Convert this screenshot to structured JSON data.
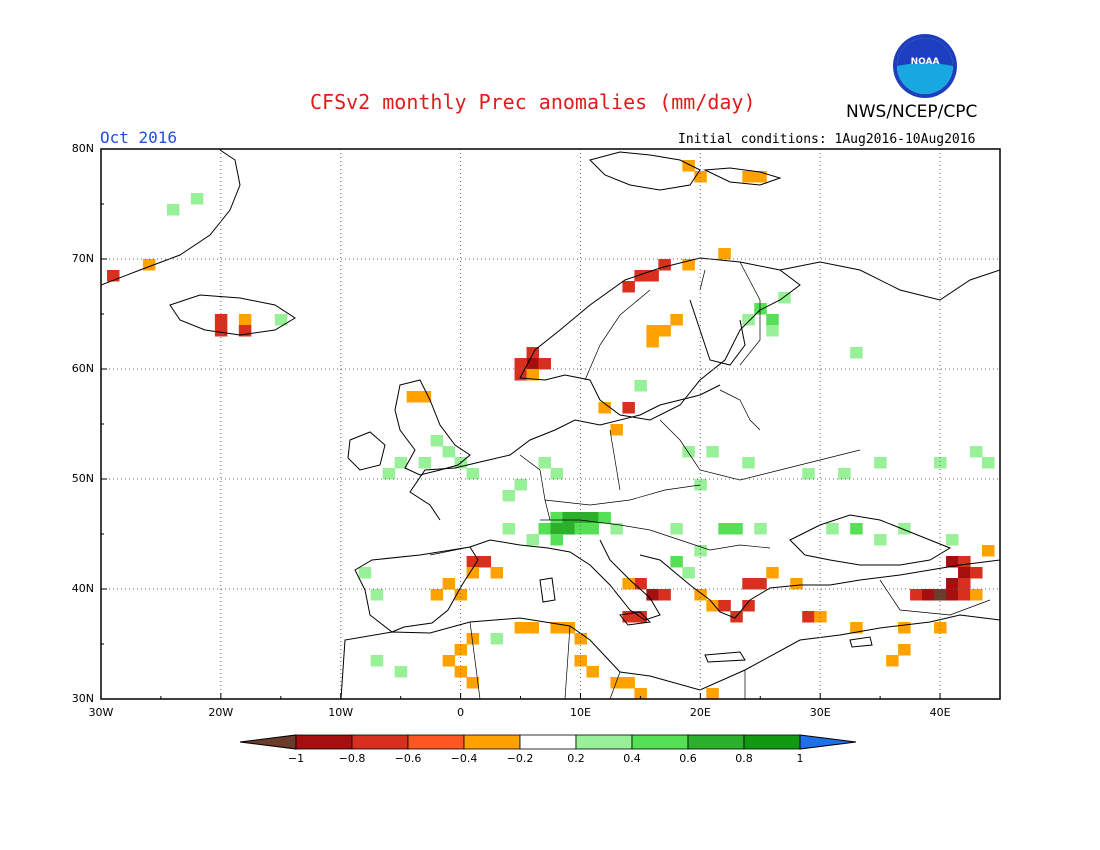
{
  "header": {
    "title": "CFSv2 monthly Prec anomalies (mm/day)",
    "month": "Oct 2016",
    "initial_conditions": "Initial conditions: 1Aug2016-10Aug2016",
    "org": "NWS/NCEP/CPC",
    "logo_text": "NOAA"
  },
  "axes": {
    "lat_labels": [
      "80N",
      "70N",
      "60N",
      "50N",
      "40N",
      "30N"
    ],
    "lon_labels": [
      "30W",
      "20W",
      "10W",
      "0",
      "10E",
      "20E",
      "30E",
      "40E"
    ]
  },
  "colorbar": {
    "labels": [
      "-1",
      "-0.8",
      "-0.6",
      "-0.4",
      "-0.2",
      "0.2",
      "0.4",
      "0.6",
      "0.8",
      "1"
    ],
    "colors": [
      "#6b3c29",
      "#a50f0f",
      "#d7301f",
      "#ff5722",
      "#ffa200",
      "#ffffff",
      "#98f098",
      "#55e055",
      "#2cb02c",
      "#119911",
      "#1e6fe8"
    ]
  },
  "map": {
    "lat_range": [
      30,
      80
    ],
    "lon_range": [
      -30,
      45
    ],
    "grid_step_deg": 10,
    "anomaly_cells": [
      {
        "lon": -29,
        "lat": 68.5,
        "v": -0.7
      },
      {
        "lon": -26,
        "lat": 69.5,
        "v": -0.3
      },
      {
        "lon": -22,
        "lat": 75.5,
        "v": 0.3
      },
      {
        "lon": -24,
        "lat": 74.5,
        "v": 0.3
      },
      {
        "lon": -20,
        "lat": 64.5,
        "v": -0.6
      },
      {
        "lon": -18,
        "lat": 64.5,
        "v": -0.3
      },
      {
        "lon": -20,
        "lat": 63.5,
        "v": -0.6
      },
      {
        "lon": -18,
        "lat": 63.5,
        "v": -0.6
      },
      {
        "lon": -15,
        "lat": 64.5,
        "v": 0.3
      },
      {
        "lon": 19,
        "lat": 78.5,
        "v": -0.3
      },
      {
        "lon": 20,
        "lat": 77.5,
        "v": -0.3
      },
      {
        "lon": 24,
        "lat": 77.5,
        "v": -0.3
      },
      {
        "lon": 25,
        "lat": 77.5,
        "v": -0.3
      },
      {
        "lon": 22,
        "lat": 70.5,
        "v": -0.3
      },
      {
        "lon": 19,
        "lat": 69.5,
        "v": -0.3
      },
      {
        "lon": 16,
        "lat": 68.5,
        "v": -0.7
      },
      {
        "lon": 15,
        "lat": 68.5,
        "v": -0.7
      },
      {
        "lon": 17,
        "lat": 69.5,
        "v": -0.6
      },
      {
        "lon": 14,
        "lat": 67.5,
        "v": -0.6
      },
      {
        "lon": 17,
        "lat": 63.5,
        "v": -0.3
      },
      {
        "lon": 16,
        "lat": 63.5,
        "v": -0.3
      },
      {
        "lon": 18,
        "lat": 64.5,
        "v": -0.3
      },
      {
        "lon": 16,
        "lat": 62.5,
        "v": -0.3
      },
      {
        "lon": 6,
        "lat": 61.5,
        "v": -0.7
      },
      {
        "lon": 6,
        "lat": 60.5,
        "v": -0.8
      },
      {
        "lon": 5,
        "lat": 60.5,
        "v": -0.6
      },
      {
        "lon": 7,
        "lat": 60.5,
        "v": -0.6
      },
      {
        "lon": 5,
        "lat": 59.5,
        "v": -0.7
      },
      {
        "lon": 6,
        "lat": 59.5,
        "v": -0.3
      },
      {
        "lon": 27,
        "lat": 66.5,
        "v": 0.3
      },
      {
        "lon": 25,
        "lat": 65.5,
        "v": 0.5
      },
      {
        "lon": 26,
        "lat": 64.5,
        "v": 0.5
      },
      {
        "lon": 24,
        "lat": 64.5,
        "v": 0.3
      },
      {
        "lon": 26,
        "lat": 63.5,
        "v": 0.3
      },
      {
        "lon": 33,
        "lat": 61.5,
        "v": 0.3
      },
      {
        "lon": -4,
        "lat": 57.5,
        "v": -0.3
      },
      {
        "lon": -3,
        "lat": 57.5,
        "v": -0.3
      },
      {
        "lon": 12,
        "lat": 56.5,
        "v": -0.3
      },
      {
        "lon": 14,
        "lat": 56.5,
        "v": -0.6
      },
      {
        "lon": 13,
        "lat": 54.5,
        "v": -0.3
      },
      {
        "lon": 15,
        "lat": 58.5,
        "v": 0.3
      },
      {
        "lon": -2,
        "lat": 53.5,
        "v": 0.3
      },
      {
        "lon": -1,
        "lat": 52.5,
        "v": 0.3
      },
      {
        "lon": 0,
        "lat": 51.5,
        "v": 0.3
      },
      {
        "lon": -3,
        "lat": 51.5,
        "v": 0.3
      },
      {
        "lon": -5,
        "lat": 51.5,
        "v": 0.3
      },
      {
        "lon": 1,
        "lat": 50.5,
        "v": 0.3
      },
      {
        "lon": -6,
        "lat": 50.5,
        "v": 0.3
      },
      {
        "lon": 4,
        "lat": 48.5,
        "v": 0.3
      },
      {
        "lon": 5,
        "lat": 49.5,
        "v": 0.3
      },
      {
        "lon": 7,
        "lat": 51.5,
        "v": 0.3
      },
      {
        "lon": 8,
        "lat": 50.5,
        "v": 0.3
      },
      {
        "lon": 19,
        "lat": 52.5,
        "v": 0.3
      },
      {
        "lon": 21,
        "lat": 52.5,
        "v": 0.3
      },
      {
        "lon": 20,
        "lat": 49.5,
        "v": 0.3
      },
      {
        "lon": 24,
        "lat": 51.5,
        "v": 0.3
      },
      {
        "lon": 29,
        "lat": 50.5,
        "v": 0.3
      },
      {
        "lon": 32,
        "lat": 50.5,
        "v": 0.3
      },
      {
        "lon": 35,
        "lat": 51.5,
        "v": 0.3
      },
      {
        "lon": 40,
        "lat": 51.5,
        "v": 0.3
      },
      {
        "lon": 43,
        "lat": 52.5,
        "v": 0.3
      },
      {
        "lon": 44,
        "lat": 51.5,
        "v": 0.3
      },
      {
        "lon": 8,
        "lat": 46.5,
        "v": 0.5
      },
      {
        "lon": 9,
        "lat": 46.5,
        "v": 0.7
      },
      {
        "lon": 10,
        "lat": 46.5,
        "v": 0.7
      },
      {
        "lon": 11,
        "lat": 46.5,
        "v": 0.7
      },
      {
        "lon": 12,
        "lat": 46.5,
        "v": 0.5
      },
      {
        "lon": 7,
        "lat": 45.5,
        "v": 0.5
      },
      {
        "lon": 8,
        "lat": 45.5,
        "v": 0.7
      },
      {
        "lon": 9,
        "lat": 45.5,
        "v": 0.7
      },
      {
        "lon": 10,
        "lat": 45.5,
        "v": 0.5
      },
      {
        "lon": 11,
        "lat": 45.5,
        "v": 0.5
      },
      {
        "lon": 6,
        "lat": 44.5,
        "v": 0.3
      },
      {
        "lon": 8,
        "lat": 44.5,
        "v": 0.5
      },
      {
        "lon": 13,
        "lat": 45.5,
        "v": 0.3
      },
      {
        "lon": 4,
        "lat": 45.5,
        "v": 0.3
      },
      {
        "lon": 18,
        "lat": 45.5,
        "v": 0.3
      },
      {
        "lon": 22,
        "lat": 45.5,
        "v": 0.5
      },
      {
        "lon": 23,
        "lat": 45.5,
        "v": 0.5
      },
      {
        "lon": 25,
        "lat": 45.5,
        "v": 0.3
      },
      {
        "lon": 18,
        "lat": 42.5,
        "v": 0.5
      },
      {
        "lon": 19,
        "lat": 41.5,
        "v": 0.3
      },
      {
        "lon": 20,
        "lat": 43.5,
        "v": 0.3
      },
      {
        "lon": 31,
        "lat": 45.5,
        "v": 0.3
      },
      {
        "lon": 33,
        "lat": 45.5,
        "v": 0.5
      },
      {
        "lon": 35,
        "lat": 44.5,
        "v": 0.3
      },
      {
        "lon": 37,
        "lat": 45.5,
        "v": 0.3
      },
      {
        "lon": 41,
        "lat": 44.5,
        "v": 0.3
      },
      {
        "lon": 44,
        "lat": 43.5,
        "v": 0.3
      },
      {
        "lon": 1,
        "lat": 42.5,
        "v": -0.6
      },
      {
        "lon": 2,
        "lat": 42.5,
        "v": -0.7
      },
      {
        "lon": 3,
        "lat": 41.5,
        "v": -0.3
      },
      {
        "lon": 1,
        "lat": 41.5,
        "v": -0.3
      },
      {
        "lon": -1,
        "lat": 40.5,
        "v": -0.3
      },
      {
        "lon": 0,
        "lat": 39.5,
        "v": -0.3
      },
      {
        "lon": -2,
        "lat": 39.5,
        "v": -0.3
      },
      {
        "lon": -8,
        "lat": 41.5,
        "v": 0.3
      },
      {
        "lon": -7,
        "lat": 39.5,
        "v": 0.3
      },
      {
        "lon": 15,
        "lat": 40.5,
        "v": -0.6
      },
      {
        "lon": 16,
        "lat": 39.5,
        "v": -0.8
      },
      {
        "lon": 17,
        "lat": 39.5,
        "v": -0.7
      },
      {
        "lon": 14,
        "lat": 40.5,
        "v": -0.3
      },
      {
        "lon": 14,
        "lat": 37.5,
        "v": -0.7
      },
      {
        "lon": 15,
        "lat": 37.5,
        "v": -0.6
      },
      {
        "lon": 21,
        "lat": 38.5,
        "v": -0.3
      },
      {
        "lon": 22,
        "lat": 38.5,
        "v": -0.6
      },
      {
        "lon": 23,
        "lat": 37.5,
        "v": -0.7
      },
      {
        "lon": 24,
        "lat": 38.5,
        "v": -0.6
      },
      {
        "lon": 20,
        "lat": 39.5,
        "v": -0.3
      },
      {
        "lon": 24,
        "lat": 40.5,
        "v": -0.6
      },
      {
        "lon": 25,
        "lat": 40.5,
        "v": -0.6
      },
      {
        "lon": 26,
        "lat": 41.5,
        "v": -0.3
      },
      {
        "lon": 28,
        "lat": 40.5,
        "v": -0.3
      },
      {
        "lon": 29,
        "lat": 37.5,
        "v": -0.6
      },
      {
        "lon": 30,
        "lat": 37.5,
        "v": -0.3
      },
      {
        "lon": 33,
        "lat": 36.5,
        "v": -0.3
      },
      {
        "lon": 37,
        "lat": 36.5,
        "v": -0.3
      },
      {
        "lon": 40,
        "lat": 36.5,
        "v": -0.3
      },
      {
        "lon": 41,
        "lat": 42.5,
        "v": -0.8
      },
      {
        "lon": 42,
        "lat": 42.5,
        "v": -0.7
      },
      {
        "lon": 42,
        "lat": 41.5,
        "v": -0.8
      },
      {
        "lon": 43,
        "lat": 41.5,
        "v": -0.6
      },
      {
        "lon": 41,
        "lat": 40.5,
        "v": -0.8
      },
      {
        "lon": 42,
        "lat": 40.5,
        "v": -0.6
      },
      {
        "lon": 38,
        "lat": 39.5,
        "v": -0.6
      },
      {
        "lon": 39,
        "lat": 39.5,
        "v": -0.8
      },
      {
        "lon": 40,
        "lat": 39.5,
        "v": -1.1
      },
      {
        "lon": 41,
        "lat": 39.5,
        "v": -0.8
      },
      {
        "lon": 42,
        "lat": 39.5,
        "v": -0.6
      },
      {
        "lon": 43,
        "lat": 39.5,
        "v": -0.3
      },
      {
        "lon": 44,
        "lat": 43.5,
        "v": -0.3
      },
      {
        "lon": 1,
        "lat": 35.5,
        "v": -0.3
      },
      {
        "lon": 0,
        "lat": 34.5,
        "v": -0.3
      },
      {
        "lon": -1,
        "lat": 33.5,
        "v": -0.3
      },
      {
        "lon": 0,
        "lat": 32.5,
        "v": -0.3
      },
      {
        "lon": 1,
        "lat": 31.5,
        "v": -0.3
      },
      {
        "lon": 5,
        "lat": 36.5,
        "v": -0.3
      },
      {
        "lon": 6,
        "lat": 36.5,
        "v": -0.3
      },
      {
        "lon": 8,
        "lat": 36.5,
        "v": -0.3
      },
      {
        "lon": 9,
        "lat": 36.5,
        "v": -0.3
      },
      {
        "lon": 10,
        "lat": 35.5,
        "v": -0.3
      },
      {
        "lon": 10,
        "lat": 33.5,
        "v": -0.3
      },
      {
        "lon": 11,
        "lat": 32.5,
        "v": -0.3
      },
      {
        "lon": 13,
        "lat": 31.5,
        "v": -0.3
      },
      {
        "lon": 14,
        "lat": 31.5,
        "v": -0.3
      },
      {
        "lon": 15,
        "lat": 30.5,
        "v": -0.3
      },
      {
        "lon": 21,
        "lat": 30.5,
        "v": -0.3
      },
      {
        "lon": 36,
        "lat": 33.5,
        "v": -0.3
      },
      {
        "lon": 37,
        "lat": 34.5,
        "v": -0.3
      },
      {
        "lon": -7,
        "lat": 33.5,
        "v": 0.3
      },
      {
        "lon": 3,
        "lat": 35.5,
        "v": 0.3
      },
      {
        "lon": -5,
        "lat": 32.5,
        "v": 0.3
      }
    ]
  }
}
